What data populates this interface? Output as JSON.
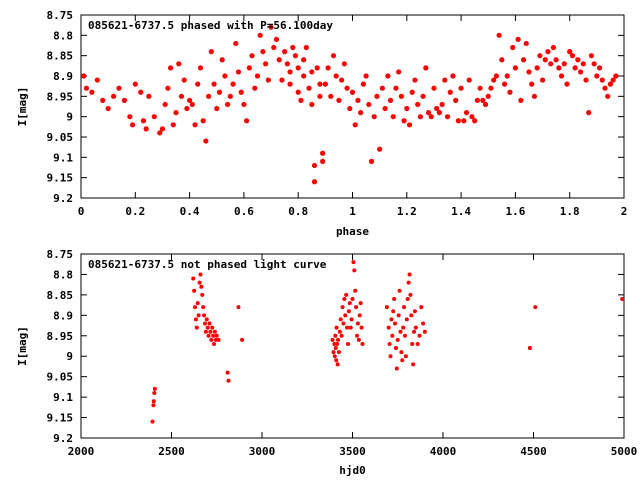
{
  "colors": {
    "points": "#ff0000",
    "axes": "#000000",
    "background": "#ffffff"
  },
  "chart_data": [
    {
      "type": "scatter",
      "title": "085621-6737.5 phased with P=56.100day",
      "xlabel": "phase",
      "ylabel": "I[mag]",
      "xlim": [
        0,
        2
      ],
      "ylim": [
        8.75,
        9.2
      ],
      "y_inverted": true,
      "grid": false,
      "xticks": [
        "0",
        "0.2",
        "0.4",
        "0.6",
        "0.8",
        "1",
        "1.2",
        "1.4",
        "1.6",
        "1.8",
        "2"
      ],
      "yticks": [
        "8.75",
        "8.8",
        "8.85",
        "8.9",
        "8.95",
        "9",
        "9.05",
        "9.1",
        "9.15",
        "9.2"
      ],
      "points": [
        [
          0.01,
          8.9
        ],
        [
          0.02,
          8.93
        ],
        [
          0.04,
          8.94
        ],
        [
          0.06,
          8.91
        ],
        [
          0.08,
          8.96
        ],
        [
          0.1,
          8.98
        ],
        [
          0.12,
          8.95
        ],
        [
          0.14,
          8.93
        ],
        [
          0.16,
          8.96
        ],
        [
          0.18,
          9.0
        ],
        [
          0.19,
          9.02
        ],
        [
          0.2,
          8.92
        ],
        [
          0.22,
          8.94
        ],
        [
          0.23,
          9.01
        ],
        [
          0.24,
          9.03
        ],
        [
          0.25,
          8.95
        ],
        [
          0.27,
          9.0
        ],
        [
          0.29,
          9.04
        ],
        [
          0.3,
          9.03
        ],
        [
          0.31,
          8.97
        ],
        [
          0.32,
          8.93
        ],
        [
          0.33,
          8.88
        ],
        [
          0.34,
          9.02
        ],
        [
          0.35,
          8.99
        ],
        [
          0.36,
          8.87
        ],
        [
          0.37,
          8.95
        ],
        [
          0.38,
          8.91
        ],
        [
          0.39,
          8.98
        ],
        [
          0.4,
          8.96
        ],
        [
          0.41,
          8.97
        ],
        [
          0.42,
          9.02
        ],
        [
          0.43,
          8.92
        ],
        [
          0.44,
          8.88
        ],
        [
          0.45,
          9.01
        ],
        [
          0.46,
          9.06
        ],
        [
          0.47,
          8.95
        ],
        [
          0.48,
          8.84
        ],
        [
          0.49,
          8.92
        ],
        [
          0.5,
          8.98
        ],
        [
          0.51,
          8.94
        ],
        [
          0.52,
          8.86
        ],
        [
          0.53,
          8.9
        ],
        [
          0.54,
          8.97
        ],
        [
          0.55,
          8.95
        ],
        [
          0.56,
          8.92
        ],
        [
          0.57,
          8.82
        ],
        [
          0.58,
          8.89
        ],
        [
          0.59,
          8.94
        ],
        [
          0.6,
          8.97
        ],
        [
          0.61,
          9.01
        ],
        [
          0.62,
          8.88
        ],
        [
          0.63,
          8.85
        ],
        [
          0.64,
          8.93
        ],
        [
          0.65,
          8.9
        ],
        [
          0.66,
          8.8
        ],
        [
          0.67,
          8.84
        ],
        [
          0.68,
          8.87
        ],
        [
          0.69,
          8.91
        ],
        [
          0.7,
          8.78
        ],
        [
          0.71,
          8.83
        ],
        [
          0.72,
          8.81
        ],
        [
          0.73,
          8.86
        ],
        [
          0.74,
          8.91
        ],
        [
          0.75,
          8.84
        ],
        [
          0.76,
          8.87
        ],
        [
          0.77,
          8.89
        ],
        [
          0.77,
          8.92
        ],
        [
          0.78,
          8.83
        ],
        [
          0.79,
          8.85
        ],
        [
          0.8,
          8.88
        ],
        [
          0.8,
          8.94
        ],
        [
          0.81,
          8.96
        ],
        [
          0.82,
          8.9
        ],
        [
          0.82,
          8.86
        ],
        [
          0.83,
          8.83
        ],
        [
          0.84,
          8.93
        ],
        [
          0.85,
          8.97
        ],
        [
          0.85,
          8.89
        ],
        [
          0.86,
          9.12
        ],
        [
          0.86,
          9.16
        ],
        [
          0.87,
          8.88
        ],
        [
          0.88,
          8.92
        ],
        [
          0.88,
          8.95
        ],
        [
          0.89,
          9.09
        ],
        [
          0.89,
          9.11
        ],
        [
          0.9,
          8.92
        ],
        [
          0.91,
          8.88
        ],
        [
          0.92,
          8.95
        ],
        [
          0.93,
          8.85
        ],
        [
          0.94,
          8.9
        ],
        [
          0.95,
          8.96
        ],
        [
          0.96,
          8.91
        ],
        [
          0.97,
          8.87
        ],
        [
          0.98,
          8.93
        ],
        [
          0.99,
          8.98
        ],
        [
          1.0,
          8.94
        ],
        [
          1.01,
          9.02
        ],
        [
          1.02,
          8.96
        ],
        [
          1.03,
          8.99
        ],
        [
          1.04,
          8.92
        ],
        [
          1.05,
          8.9
        ],
        [
          1.06,
          8.97
        ],
        [
          1.07,
          9.11
        ],
        [
          1.08,
          9.0
        ],
        [
          1.09,
          8.95
        ],
        [
          1.1,
          9.08
        ],
        [
          1.11,
          8.93
        ],
        [
          1.12,
          8.98
        ],
        [
          1.13,
          8.9
        ],
        [
          1.14,
          8.96
        ],
        [
          1.15,
          9.0
        ],
        [
          1.16,
          8.93
        ],
        [
          1.17,
          8.89
        ],
        [
          1.18,
          8.95
        ],
        [
          1.19,
          9.01
        ],
        [
          1.2,
          8.98
        ],
        [
          1.21,
          9.02
        ],
        [
          1.22,
          8.94
        ],
        [
          1.23,
          8.91
        ],
        [
          1.24,
          8.97
        ],
        [
          1.25,
          9.0
        ],
        [
          1.26,
          8.95
        ],
        [
          1.27,
          8.88
        ],
        [
          1.28,
          8.99
        ],
        [
          1.29,
          9.0
        ],
        [
          1.3,
          8.93
        ],
        [
          1.31,
          8.98
        ],
        [
          1.32,
          8.99
        ],
        [
          1.33,
          8.97
        ],
        [
          1.34,
          8.91
        ],
        [
          1.35,
          9.0
        ],
        [
          1.36,
          8.94
        ],
        [
          1.37,
          8.9
        ],
        [
          1.38,
          8.96
        ],
        [
          1.39,
          9.01
        ],
        [
          1.4,
          8.93
        ],
        [
          1.41,
          9.01
        ],
        [
          1.42,
          8.99
        ],
        [
          1.43,
          8.91
        ],
        [
          1.44,
          9.0
        ],
        [
          1.45,
          9.01
        ],
        [
          1.46,
          8.96
        ],
        [
          1.47,
          8.93
        ],
        [
          1.48,
          8.96
        ],
        [
          1.49,
          8.97
        ],
        [
          1.5,
          8.95
        ],
        [
          1.51,
          8.93
        ],
        [
          1.52,
          8.91
        ],
        [
          1.53,
          8.9
        ],
        [
          1.54,
          8.8
        ],
        [
          1.55,
          8.86
        ],
        [
          1.56,
          8.92
        ],
        [
          1.57,
          8.9
        ],
        [
          1.58,
          8.94
        ],
        [
          1.59,
          8.83
        ],
        [
          1.6,
          8.88
        ],
        [
          1.61,
          8.81
        ],
        [
          1.62,
          8.96
        ],
        [
          1.63,
          8.86
        ],
        [
          1.64,
          8.82
        ],
        [
          1.65,
          8.89
        ],
        [
          1.66,
          8.92
        ],
        [
          1.67,
          8.95
        ],
        [
          1.68,
          8.88
        ],
        [
          1.69,
          8.85
        ],
        [
          1.7,
          8.91
        ],
        [
          1.71,
          8.86
        ],
        [
          1.72,
          8.84
        ],
        [
          1.73,
          8.87
        ],
        [
          1.74,
          8.83
        ],
        [
          1.75,
          8.86
        ],
        [
          1.76,
          8.88
        ],
        [
          1.77,
          8.9
        ],
        [
          1.78,
          8.87
        ],
        [
          1.79,
          8.92
        ],
        [
          1.8,
          8.84
        ],
        [
          1.81,
          8.85
        ],
        [
          1.82,
          8.88
        ],
        [
          1.83,
          8.86
        ],
        [
          1.84,
          8.89
        ],
        [
          1.85,
          8.87
        ],
        [
          1.86,
          8.91
        ],
        [
          1.87,
          8.99
        ],
        [
          1.88,
          8.85
        ],
        [
          1.89,
          8.87
        ],
        [
          1.9,
          8.9
        ],
        [
          1.91,
          8.88
        ],
        [
          1.92,
          8.91
        ],
        [
          1.93,
          8.93
        ],
        [
          1.94,
          8.95
        ],
        [
          1.95,
          8.92
        ],
        [
          1.96,
          8.91
        ],
        [
          1.97,
          8.9
        ]
      ]
    },
    {
      "type": "scatter",
      "title": "085621-6737.5 not phased light curve",
      "xlabel": "hjd0",
      "ylabel": "I[mag]",
      "xlim": [
        2000,
        5000
      ],
      "ylim": [
        8.75,
        9.2
      ],
      "y_inverted": true,
      "grid": false,
      "xticks": [
        "2000",
        "2500",
        "3000",
        "3500",
        "4000",
        "4500",
        "5000"
      ],
      "yticks": [
        "8.75",
        "8.8",
        "8.85",
        "8.9",
        "8.95",
        "9",
        "9.05",
        "9.1",
        "9.15",
        "9.2"
      ],
      "points": [
        [
          2395,
          9.16
        ],
        [
          2400,
          9.12
        ],
        [
          2402,
          9.11
        ],
        [
          2405,
          9.09
        ],
        [
          2408,
          9.08
        ],
        [
          2620,
          8.81
        ],
        [
          2625,
          8.84
        ],
        [
          2630,
          8.88
        ],
        [
          2635,
          8.91
        ],
        [
          2640,
          8.93
        ],
        [
          2645,
          8.87
        ],
        [
          2650,
          8.9
        ],
        [
          2655,
          8.82
        ],
        [
          2660,
          8.8
        ],
        [
          2665,
          8.83
        ],
        [
          2670,
          8.85
        ],
        [
          2675,
          8.88
        ],
        [
          2680,
          8.9
        ],
        [
          2685,
          8.92
        ],
        [
          2690,
          8.94
        ],
        [
          2695,
          8.91
        ],
        [
          2700,
          8.93
        ],
        [
          2705,
          8.95
        ],
        [
          2710,
          8.92
        ],
        [
          2715,
          8.94
        ],
        [
          2720,
          8.96
        ],
        [
          2725,
          8.93
        ],
        [
          2730,
          8.95
        ],
        [
          2735,
          8.97
        ],
        [
          2740,
          8.94
        ],
        [
          2745,
          8.96
        ],
        [
          2750,
          8.95
        ],
        [
          2760,
          8.96
        ],
        [
          2810,
          9.04
        ],
        [
          2815,
          9.06
        ],
        [
          2870,
          8.88
        ],
        [
          2890,
          8.96
        ],
        [
          3390,
          8.96
        ],
        [
          3395,
          8.99
        ],
        [
          3400,
          8.97
        ],
        [
          3402,
          9.0
        ],
        [
          3405,
          8.95
        ],
        [
          3408,
          8.98
        ],
        [
          3410,
          9.01
        ],
        [
          3412,
          8.93
        ],
        [
          3415,
          8.97
        ],
        [
          3418,
          9.02
        ],
        [
          3420,
          8.96
        ],
        [
          3425,
          8.99
        ],
        [
          3430,
          8.94
        ],
        [
          3435,
          8.91
        ],
        [
          3440,
          8.95
        ],
        [
          3445,
          8.88
        ],
        [
          3450,
          8.92
        ],
        [
          3455,
          8.86
        ],
        [
          3460,
          8.9
        ],
        [
          3465,
          8.85
        ],
        [
          3470,
          8.93
        ],
        [
          3475,
          8.97
        ],
        [
          3480,
          8.89
        ],
        [
          3485,
          8.87
        ],
        [
          3490,
          8.93
        ],
        [
          3495,
          8.91
        ],
        [
          3500,
          8.86
        ],
        [
          3505,
          8.77
        ],
        [
          3510,
          8.79
        ],
        [
          3515,
          8.84
        ],
        [
          3520,
          8.88
        ],
        [
          3525,
          8.95
        ],
        [
          3530,
          8.92
        ],
        [
          3535,
          8.96
        ],
        [
          3540,
          8.9
        ],
        [
          3545,
          8.87
        ],
        [
          3550,
          8.93
        ],
        [
          3555,
          8.97
        ],
        [
          3690,
          8.88
        ],
        [
          3700,
          8.93
        ],
        [
          3705,
          8.97
        ],
        [
          3710,
          9.0
        ],
        [
          3715,
          8.91
        ],
        [
          3720,
          8.95
        ],
        [
          3725,
          8.89
        ],
        [
          3730,
          8.86
        ],
        [
          3735,
          8.92
        ],
        [
          3740,
          8.98
        ],
        [
          3745,
          9.03
        ],
        [
          3750,
          8.96
        ],
        [
          3755,
          8.9
        ],
        [
          3760,
          8.84
        ],
        [
          3765,
          8.94
        ],
        [
          3770,
          8.99
        ],
        [
          3775,
          9.01
        ],
        [
          3780,
          8.93
        ],
        [
          3785,
          8.88
        ],
        [
          3790,
          8.95
        ],
        [
          3795,
          9.0
        ],
        [
          3800,
          8.91
        ],
        [
          3805,
          8.86
        ],
        [
          3810,
          8.82
        ],
        [
          3815,
          8.8
        ],
        [
          3820,
          8.85
        ],
        [
          3825,
          8.9
        ],
        [
          3830,
          8.97
        ],
        [
          3835,
          9.02
        ],
        [
          3840,
          8.94
        ],
        [
          3845,
          8.89
        ],
        [
          3850,
          8.93
        ],
        [
          3860,
          8.97
        ],
        [
          3870,
          8.95
        ],
        [
          3880,
          8.88
        ],
        [
          3890,
          8.92
        ],
        [
          3900,
          8.94
        ],
        [
          4480,
          8.98
        ],
        [
          4510,
          8.88
        ],
        [
          4990,
          8.86
        ]
      ]
    }
  ]
}
